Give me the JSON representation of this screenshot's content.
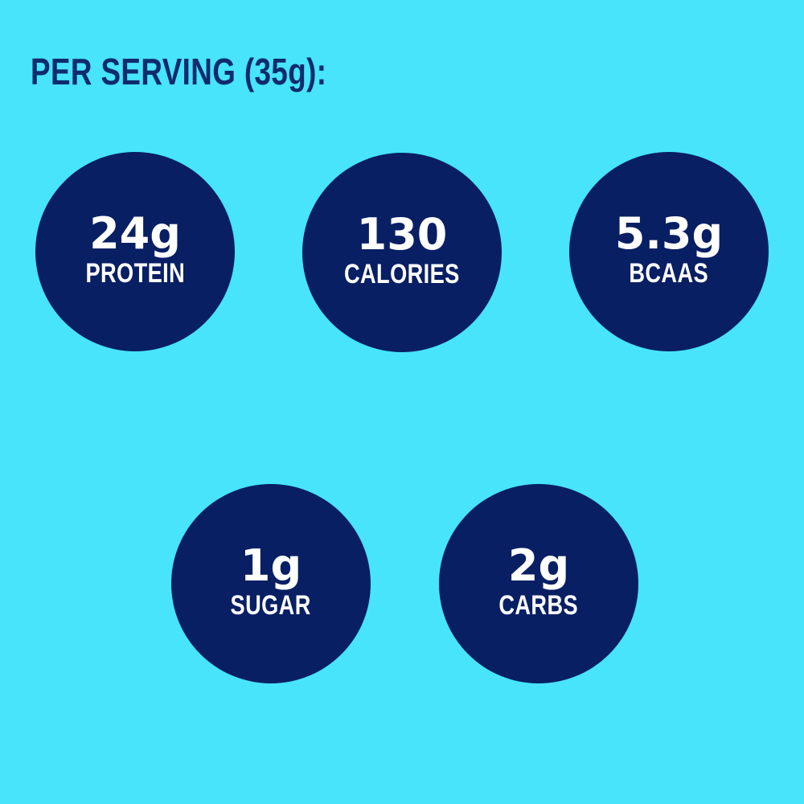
{
  "colors": {
    "background": "#47e4fb",
    "circle": "#081f64",
    "heading": "#0f2b6d",
    "stat_text": "#ffffff"
  },
  "header": {
    "title": "PER SERVING (35g):"
  },
  "serving_size": "35g",
  "stats": [
    {
      "id": "protein",
      "value": "24g",
      "label": "PROTEIN"
    },
    {
      "id": "calories",
      "value": "130",
      "label": "CALORIES"
    },
    {
      "id": "bcaas",
      "value": "5.3g",
      "label": "BCAAS"
    },
    {
      "id": "sugar",
      "value": "1g",
      "label": "SUGAR"
    },
    {
      "id": "carbs",
      "value": "2g",
      "label": "CARBS"
    }
  ]
}
